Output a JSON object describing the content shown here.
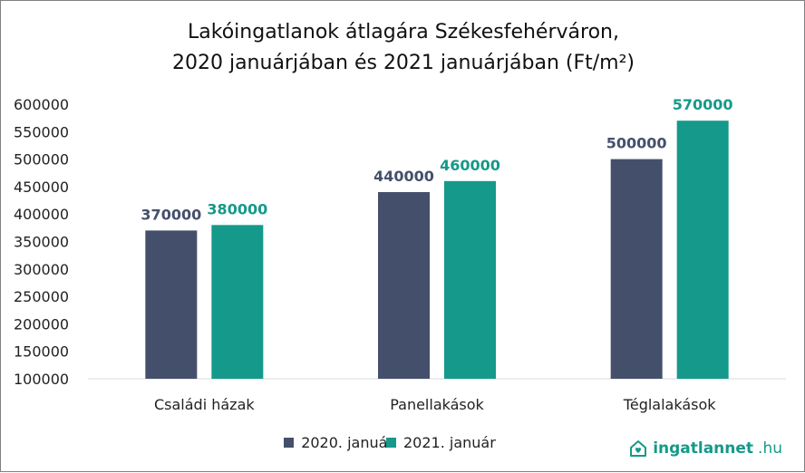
{
  "chart_data": {
    "type": "bar",
    "title_line1": "Lakóingatlanok átlagára Székesfehérváron,",
    "title_line2": "2020 januárjában és 2021 januárjában (Ft/m²)",
    "categories": [
      "Családi házak",
      "Panellakások",
      "Téglalakások"
    ],
    "series": [
      {
        "name": "2020. január",
        "values": [
          370000,
          440000,
          500000
        ],
        "color": "#44506b"
      },
      {
        "name": "2021. január",
        "values": [
          380000,
          460000,
          570000
        ],
        "color": "#15998a"
      }
    ],
    "ylim": [
      100000,
      600000
    ],
    "yticks": [
      100000,
      150000,
      200000,
      250000,
      300000,
      350000,
      400000,
      450000,
      500000,
      550000,
      600000
    ],
    "grid": false,
    "legend_position": "bottom"
  },
  "logo": {
    "name": "ingatlannet",
    "tld": ".hu",
    "icon": "house-heart-icon"
  }
}
